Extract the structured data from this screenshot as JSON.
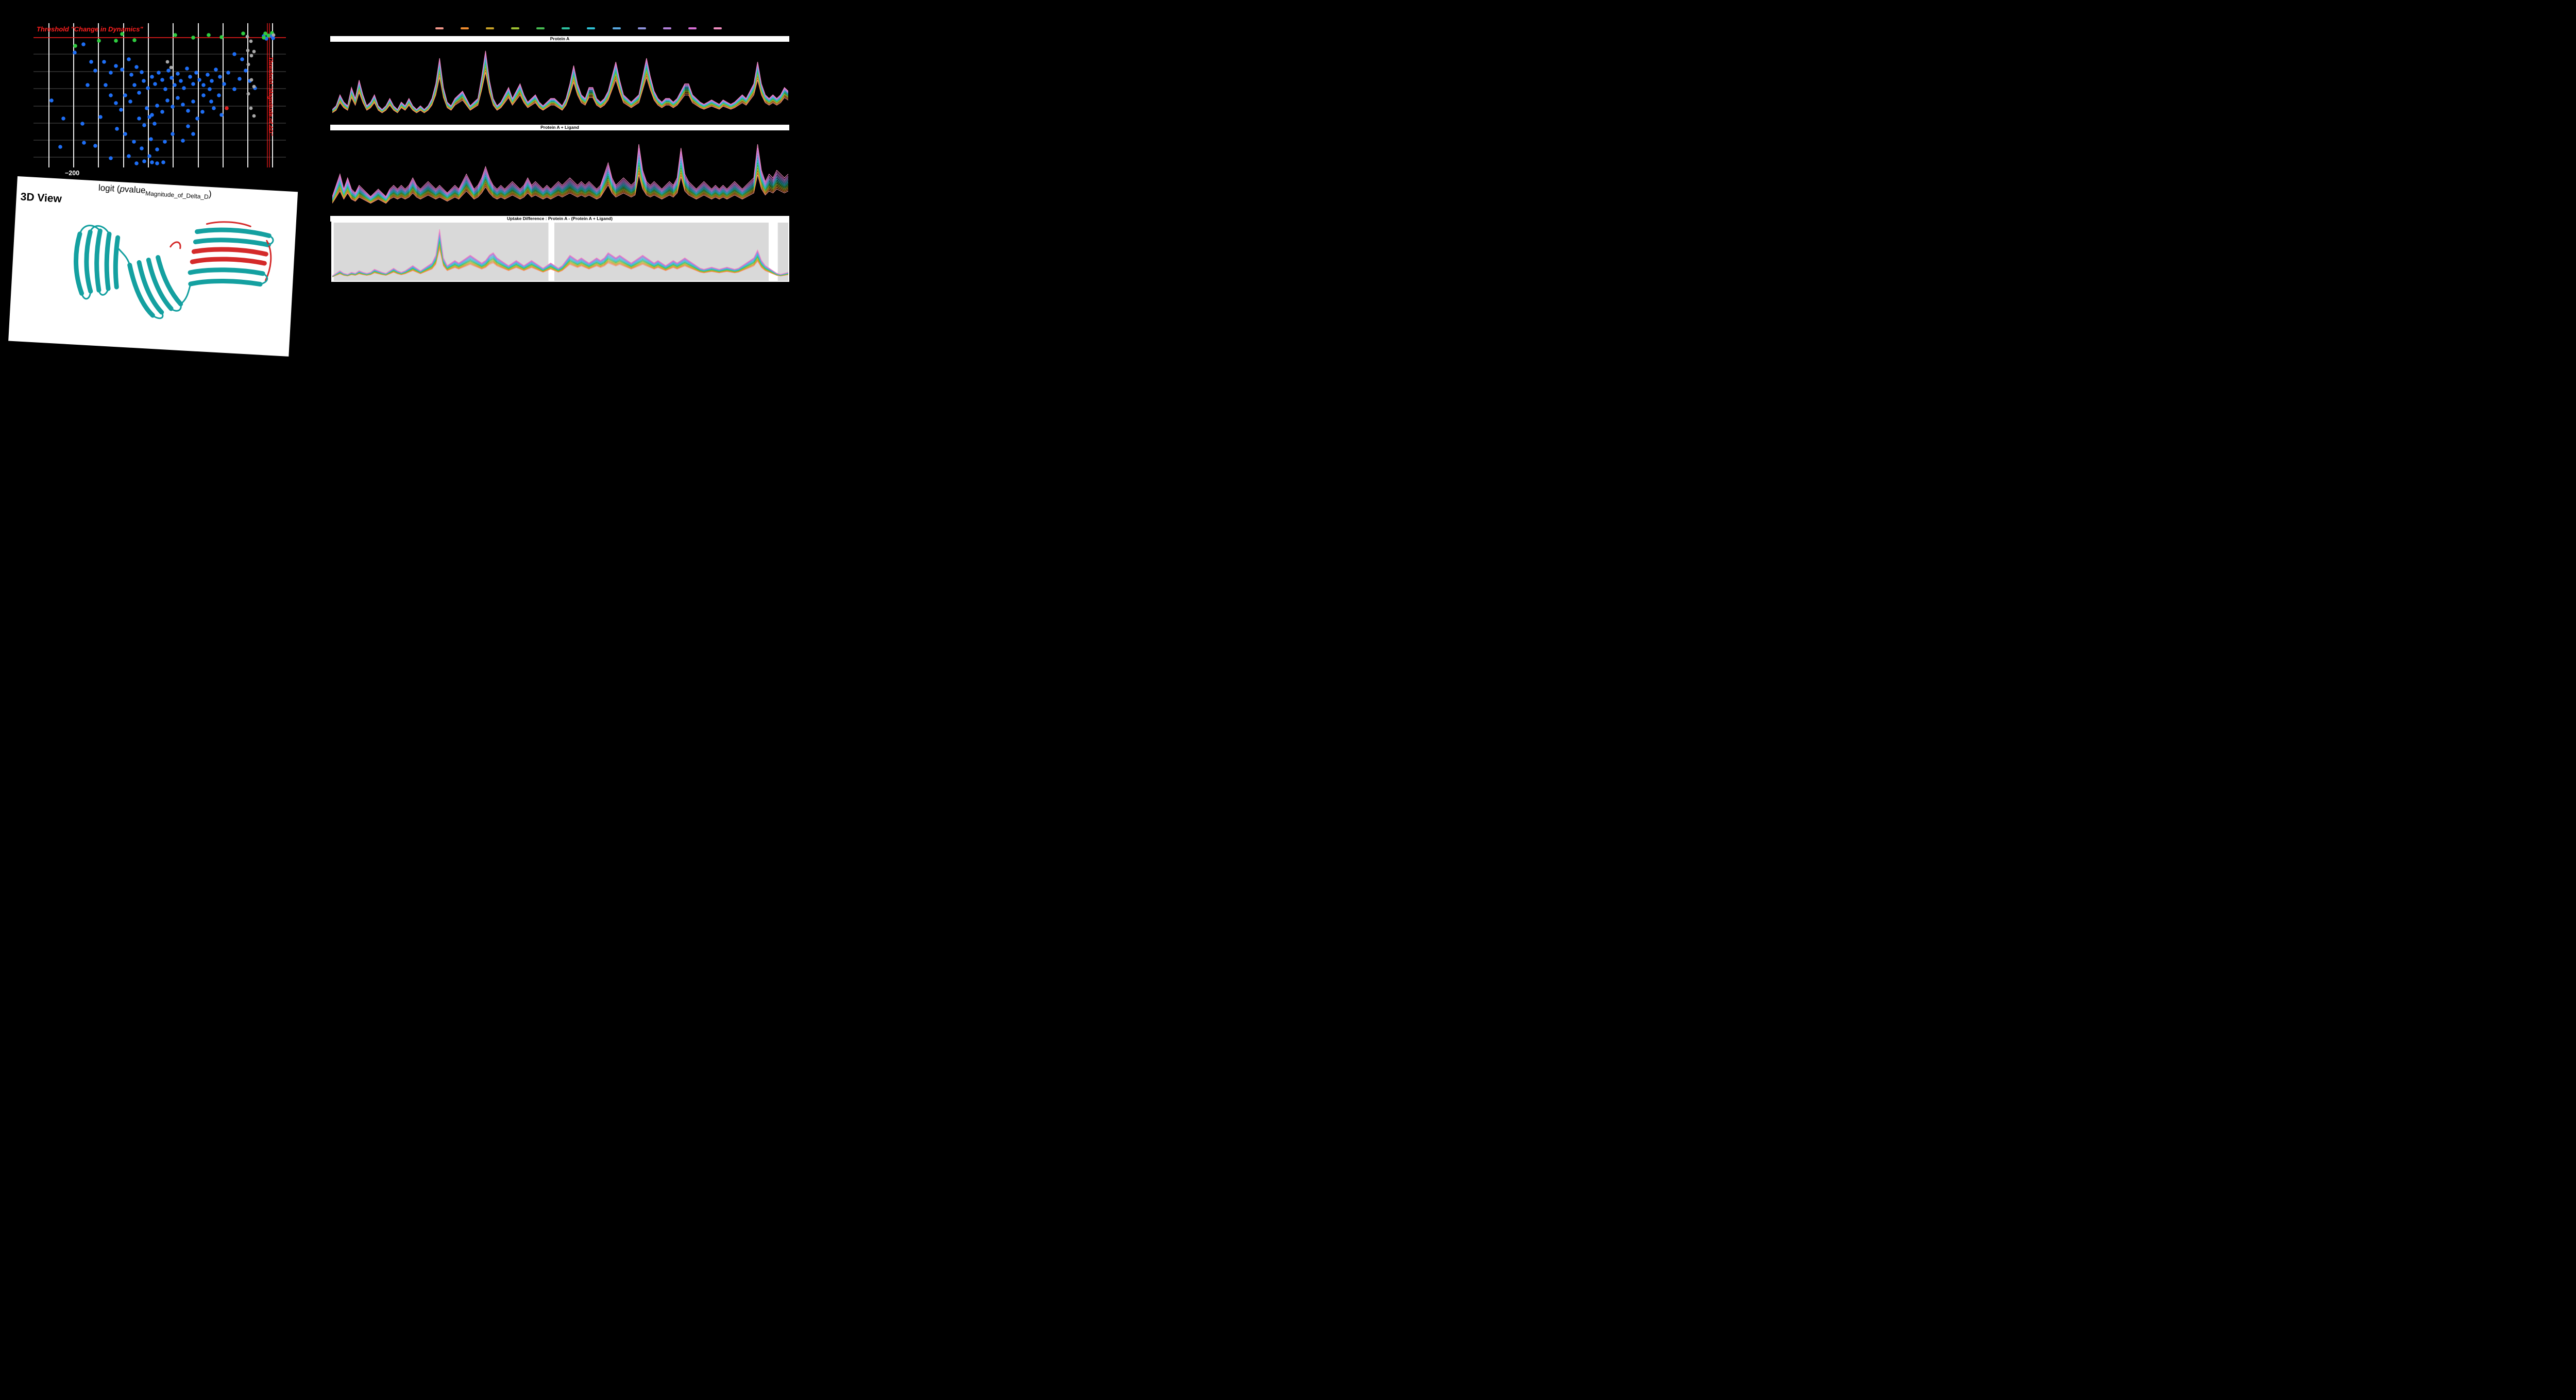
{
  "colors": {
    "background": "#000000",
    "panel_white": "#ffffff"
  },
  "viewer3d": {
    "title": "3D View",
    "ribbon_teal": "#14a0a0",
    "ribbon_red": "#d42a2a"
  },
  "charts": {
    "legend_colors": [
      "#f4978a",
      "#f08c2e",
      "#c9a227",
      "#9ec131",
      "#47bd52",
      "#2cc2a0",
      "#2ec3d6",
      "#58a8e0",
      "#8f93dd",
      "#b27fd9",
      "#d86fd6",
      "#f08cc0"
    ],
    "region_color": "#d9d9d9"
  },
  "chart_data": [
    {
      "id": "volcano",
      "type": "scatter",
      "xlabel_parts": {
        "prefix": "logit (",
        "p": "p",
        "value": "value",
        "sub": "Magnitude_of_Delta_D",
        "suffix": ")"
      },
      "x_tick_labels": [
        "−200"
      ],
      "plot_size": [
        490,
        280
      ],
      "gridlines": {
        "vertical_x": [
          30,
          78,
          126,
          175,
          223,
          271,
          320,
          368,
          416,
          464
        ],
        "horizontal_y": [
          60,
          94,
          127,
          161,
          194,
          227,
          260
        ]
      },
      "thresholds": {
        "color": "#ff1f1f",
        "horizontal_y": 28,
        "vertical_x": [
          454,
          458
        ],
        "label_horizontal": "Threshold \"Change in Dynamics\"",
        "label_vertical": "Threshold \"Magnitude of ΔD\""
      },
      "series": [
        {
          "name": "blue",
          "color": "#1e6ef5",
          "marker_size": 3.8,
          "points": [
            [
              80,
              57
            ],
            [
              97,
              41
            ],
            [
              112,
              75
            ],
            [
              137,
              75
            ],
            [
              150,
              96
            ],
            [
              160,
              83
            ],
            [
              172,
              90
            ],
            [
              185,
              70
            ],
            [
              190,
              100
            ],
            [
              200,
              85
            ],
            [
              210,
              95
            ],
            [
              196,
              120
            ],
            [
              205,
              135
            ],
            [
              214,
              112
            ],
            [
              222,
              126
            ],
            [
              230,
              104
            ],
            [
              236,
              118
            ],
            [
              243,
              96
            ],
            [
              250,
              110
            ],
            [
              256,
              128
            ],
            [
              262,
              92
            ],
            [
              268,
              106
            ],
            [
              274,
              120
            ],
            [
              280,
              98
            ],
            [
              286,
              112
            ],
            [
              292,
              126
            ],
            [
              298,
              88
            ],
            [
              304,
              104
            ],
            [
              310,
              118
            ],
            [
              316,
              96
            ],
            [
              322,
              110
            ],
            [
              330,
              120
            ],
            [
              338,
              100
            ],
            [
              346,
              112
            ],
            [
              354,
              90
            ],
            [
              362,
              104
            ],
            [
              370,
              118
            ],
            [
              378,
              96
            ],
            [
              260,
              150
            ],
            [
              270,
              162
            ],
            [
              280,
              145
            ],
            [
              290,
              158
            ],
            [
              300,
              170
            ],
            [
              310,
              152
            ],
            [
              220,
              165
            ],
            [
              230,
              178
            ],
            [
              240,
              160
            ],
            [
              250,
              172
            ],
            [
              205,
              185
            ],
            [
              215,
              198
            ],
            [
              225,
              182
            ],
            [
              235,
              195
            ],
            [
              150,
              140
            ],
            [
              160,
              155
            ],
            [
              170,
              168
            ],
            [
              130,
              182
            ],
            [
              95,
              195
            ],
            [
              58,
              185
            ],
            [
              35,
              150
            ],
            [
              120,
              92
            ],
            [
              105,
              120
            ],
            [
              140,
              120
            ],
            [
              178,
              140
            ],
            [
              188,
              152
            ],
            [
              330,
              140
            ],
            [
              345,
              152
            ],
            [
              360,
              140
            ],
            [
              390,
              128
            ],
            [
              400,
              108
            ],
            [
              412,
              92
            ],
            [
              420,
              112
            ],
            [
              430,
              126
            ],
            [
              390,
              60
            ],
            [
              405,
              70
            ],
            [
              300,
              200
            ],
            [
              310,
              215
            ],
            [
              290,
              228
            ],
            [
              270,
              215
            ],
            [
              255,
              230
            ],
            [
              240,
              245
            ],
            [
              225,
              258
            ],
            [
              210,
              243
            ],
            [
              195,
              230
            ],
            [
              185,
              258
            ],
            [
              200,
              272
            ],
            [
              215,
              268
            ],
            [
              230,
              270
            ],
            [
              178,
              215
            ],
            [
              162,
              205
            ],
            [
              120,
              238
            ],
            [
              98,
              232
            ],
            [
              52,
              240
            ],
            [
              150,
              262
            ],
            [
              240,
              272
            ],
            [
              252,
              270
            ],
            [
              228,
              225
            ],
            [
              318,
              185
            ],
            [
              328,
              172
            ],
            [
              350,
              165
            ],
            [
              365,
              178
            ],
            [
              342,
              128
            ],
            [
              447,
              25
            ],
            [
              452,
              30
            ],
            [
              460,
              24
            ],
            [
              465,
              29
            ]
          ]
        },
        {
          "name": "green",
          "color": "#2ecc40",
          "marker_size": 3.8,
          "points": [
            [
              81,
              44
            ],
            [
              127,
              34
            ],
            [
              160,
              34
            ],
            [
              172,
              21
            ],
            [
              196,
              33
            ],
            [
              275,
              23
            ],
            [
              310,
              28
            ],
            [
              340,
              23
            ],
            [
              365,
              27
            ],
            [
              407,
              20
            ],
            [
              450,
              20
            ],
            [
              456,
              24
            ],
            [
              463,
              19
            ],
            [
              447,
              28
            ]
          ]
        },
        {
          "name": "gray",
          "color": "#a9a9a9",
          "marker_size": 3.4,
          "points": [
            [
              260,
              75
            ],
            [
              267,
              86
            ],
            [
              415,
              26
            ],
            [
              422,
              35
            ],
            [
              416,
              53
            ],
            [
              423,
              63
            ],
            [
              428,
              55
            ],
            [
              417,
              80
            ],
            [
              423,
              110
            ],
            [
              428,
              123
            ],
            [
              417,
              137
            ],
            [
              422,
              165
            ],
            [
              428,
              180
            ],
            [
              466,
              23
            ]
          ]
        },
        {
          "name": "red",
          "color": "#e01f1f",
          "marker_size": 3.8,
          "points": [
            [
              375,
              165
            ]
          ]
        }
      ]
    },
    {
      "id": "uptake-protein-a",
      "type": "line",
      "title": "Protein A",
      "base": [
        0.15,
        0.2,
        0.35,
        0.25,
        0.2,
        0.45,
        0.3,
        0.55,
        0.35,
        0.2,
        0.25,
        0.35,
        0.2,
        0.15,
        0.2,
        0.3,
        0.2,
        0.15,
        0.25,
        0.2,
        0.3,
        0.2,
        0.15,
        0.2,
        0.15,
        0.2,
        0.3,
        0.5,
        0.85,
        0.45,
        0.25,
        0.2,
        0.3,
        0.35,
        0.4,
        0.3,
        0.2,
        0.25,
        0.3,
        0.6,
        0.95,
        0.55,
        0.3,
        0.2,
        0.25,
        0.35,
        0.45,
        0.3,
        0.4,
        0.5,
        0.35,
        0.25,
        0.3,
        0.35,
        0.25,
        0.2,
        0.25,
        0.3,
        0.3,
        0.25,
        0.2,
        0.3,
        0.5,
        0.75,
        0.5,
        0.35,
        0.3,
        0.45,
        0.45,
        0.3,
        0.25,
        0.3,
        0.4,
        0.6,
        0.8,
        0.55,
        0.35,
        0.3,
        0.25,
        0.3,
        0.35,
        0.6,
        0.85,
        0.6,
        0.4,
        0.3,
        0.25,
        0.3,
        0.3,
        0.25,
        0.3,
        0.4,
        0.5,
        0.5,
        0.35,
        0.3,
        0.25,
        0.22,
        0.25,
        0.28,
        0.25,
        0.22,
        0.28,
        0.25,
        0.22,
        0.25,
        0.3,
        0.35,
        0.3,
        0.4,
        0.5,
        0.8,
        0.5,
        0.35,
        0.3,
        0.35,
        0.3,
        0.35,
        0.45,
        0.4
      ],
      "series_scales": [
        0.7,
        0.74,
        0.78,
        0.81,
        0.84,
        0.87,
        0.9,
        0.93,
        0.95,
        0.97,
        0.99,
        1.01
      ]
    },
    {
      "id": "uptake-protein-a-ligand",
      "type": "line",
      "title": "Protein A + Ligand",
      "base": [
        0.2,
        0.35,
        0.5,
        0.3,
        0.45,
        0.3,
        0.25,
        0.35,
        0.3,
        0.25,
        0.2,
        0.25,
        0.3,
        0.25,
        0.2,
        0.3,
        0.35,
        0.3,
        0.35,
        0.3,
        0.35,
        0.45,
        0.35,
        0.3,
        0.35,
        0.4,
        0.35,
        0.3,
        0.35,
        0.3,
        0.25,
        0.3,
        0.35,
        0.3,
        0.4,
        0.5,
        0.4,
        0.3,
        0.35,
        0.45,
        0.6,
        0.45,
        0.35,
        0.3,
        0.35,
        0.3,
        0.35,
        0.4,
        0.35,
        0.3,
        0.35,
        0.45,
        0.35,
        0.4,
        0.35,
        0.3,
        0.35,
        0.3,
        0.35,
        0.4,
        0.35,
        0.4,
        0.45,
        0.4,
        0.35,
        0.4,
        0.35,
        0.4,
        0.35,
        0.3,
        0.35,
        0.5,
        0.65,
        0.45,
        0.35,
        0.4,
        0.45,
        0.4,
        0.35,
        0.4,
        0.9,
        0.55,
        0.4,
        0.35,
        0.4,
        0.35,
        0.3,
        0.35,
        0.4,
        0.35,
        0.45,
        0.85,
        0.5,
        0.4,
        0.35,
        0.3,
        0.35,
        0.4,
        0.35,
        0.3,
        0.35,
        0.3,
        0.35,
        0.3,
        0.35,
        0.4,
        0.35,
        0.3,
        0.35,
        0.4,
        0.45,
        0.9,
        0.55,
        0.4,
        0.5,
        0.45,
        0.55,
        0.5,
        0.45,
        0.5
      ],
      "series_scales": [
        0.55,
        0.59,
        0.63,
        0.67,
        0.71,
        0.75,
        0.79,
        0.83,
        0.87,
        0.91,
        0.95,
        1.0
      ]
    },
    {
      "id": "uptake-difference",
      "type": "line",
      "title": "Uptake Difference : Protein A - (Protein A + Ligand)",
      "base": [
        0.05,
        0.1,
        0.15,
        0.1,
        0.08,
        0.12,
        0.1,
        0.15,
        0.12,
        0.1,
        0.12,
        0.18,
        0.15,
        0.12,
        0.1,
        0.15,
        0.2,
        0.15,
        0.12,
        0.15,
        0.2,
        0.25,
        0.2,
        0.15,
        0.2,
        0.25,
        0.3,
        0.45,
        0.95,
        0.4,
        0.25,
        0.3,
        0.35,
        0.3,
        0.35,
        0.4,
        0.45,
        0.4,
        0.35,
        0.3,
        0.35,
        0.45,
        0.5,
        0.4,
        0.35,
        0.3,
        0.25,
        0.3,
        0.35,
        0.3,
        0.25,
        0.3,
        0.35,
        0.3,
        0.25,
        0.2,
        0.25,
        0.3,
        0.25,
        0.2,
        0.25,
        0.35,
        0.45,
        0.4,
        0.35,
        0.4,
        0.35,
        0.3,
        0.35,
        0.4,
        0.35,
        0.4,
        0.5,
        0.45,
        0.4,
        0.45,
        0.4,
        0.35,
        0.3,
        0.35,
        0.4,
        0.45,
        0.4,
        0.35,
        0.3,
        0.35,
        0.3,
        0.25,
        0.3,
        0.35,
        0.3,
        0.35,
        0.4,
        0.35,
        0.3,
        0.25,
        0.2,
        0.18,
        0.2,
        0.22,
        0.2,
        0.18,
        0.2,
        0.22,
        0.2,
        0.18,
        0.2,
        0.25,
        0.3,
        0.35,
        0.4,
        0.55,
        0.35,
        0.25,
        0.2,
        0.15,
        0.1,
        0.08,
        0.1,
        0.12
      ],
      "series_scales": [
        0.6,
        0.64,
        0.68,
        0.72,
        0.76,
        0.8,
        0.84,
        0.88,
        0.92,
        0.95,
        0.98,
        1.0
      ],
      "regions": [
        {
          "x0": 0.003,
          "x1": 0.474
        },
        {
          "x0": 0.487,
          "x1": 0.957
        },
        {
          "x0": 0.977,
          "x1": 1.0
        }
      ]
    }
  ]
}
